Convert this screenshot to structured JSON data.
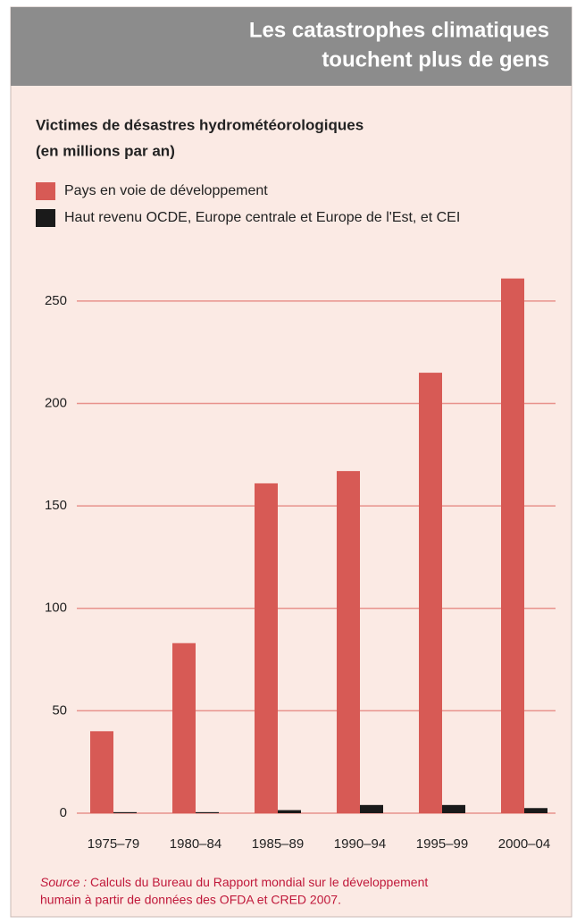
{
  "chart_data": {
    "type": "bar",
    "title": [
      "Les catastrophes climatiques",
      "touchent plus de gens"
    ],
    "subtitle": [
      "Victimes de désastres hydrométéorologiques",
      "(en millions par an)"
    ],
    "categories": [
      "1975–79",
      "1980–84",
      "1985–89",
      "1990–94",
      "1995–99",
      "2000–04"
    ],
    "series": [
      {
        "name": "Pays en voie de développement",
        "color": "#d75a55",
        "values": [
          40,
          83,
          161,
          167,
          215,
          261
        ]
      },
      {
        "name": "Haut revenu OCDE, Europe centrale et Europe de l'Est, et CEI",
        "color": "#1a1a1a",
        "values": [
          0.5,
          0.5,
          1.5,
          4,
          4,
          2.5
        ]
      }
    ],
    "ylim": [
      0,
      270
    ],
    "yticks": [
      0,
      50,
      100,
      150,
      200,
      250
    ],
    "grid": true,
    "source_label": "Source :",
    "source": [
      "Calculs du Bureau du Rapport mondial sur le développement",
      "humain à partir de données des OFDA et CRED 2007."
    ]
  }
}
